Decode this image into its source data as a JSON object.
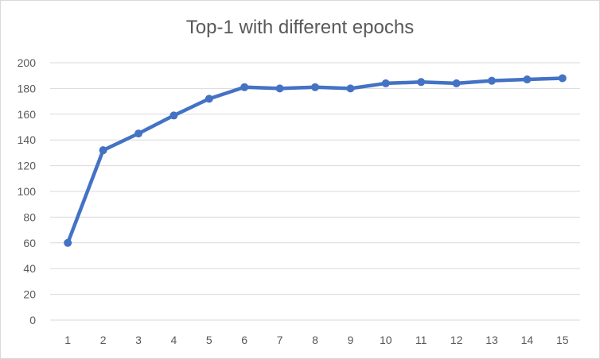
{
  "chart_data": {
    "type": "line",
    "title": "Top-1 with different epochs",
    "xlabel": "",
    "ylabel": "",
    "x": [
      "1",
      "2",
      "3",
      "4",
      "5",
      "6",
      "7",
      "8",
      "9",
      "10",
      "11",
      "12",
      "13",
      "14",
      "15"
    ],
    "series": [
      {
        "values": [
          60,
          132,
          145,
          159,
          172,
          181,
          180,
          181,
          180,
          184,
          185,
          184,
          186,
          187,
          188
        ]
      }
    ],
    "ylim": [
      0,
      200
    ],
    "yticks": [
      "0",
      "20",
      "40",
      "60",
      "80",
      "100",
      "120",
      "140",
      "160",
      "180",
      "200"
    ],
    "grid": "horizontal",
    "legend": "none",
    "colors": {
      "line": "#4472C4",
      "grid": "#d9d9d9",
      "text": "#595959"
    }
  }
}
